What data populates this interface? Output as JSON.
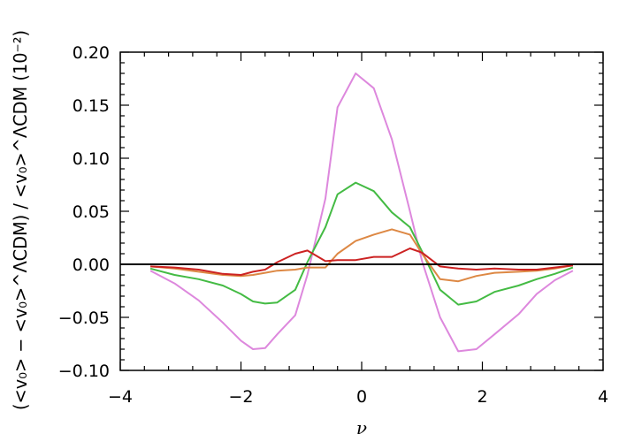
{
  "chart_data": {
    "type": "line",
    "title": "",
    "xlabel": "ν",
    "ylabel": "(<v₀> − <v₀>^ΛCDM) / <v₀>^ΛCDM (10⁻²)",
    "xlim": [
      -4,
      4
    ],
    "ylim": [
      -0.1,
      0.2
    ],
    "xticks": [
      -4,
      -2,
      0,
      2,
      4
    ],
    "yticks": [
      -0.1,
      -0.05,
      0.0,
      0.05,
      0.1,
      0.15,
      0.2
    ],
    "xtick_labels": [
      "−4",
      "−2",
      "0",
      "2",
      "4"
    ],
    "ytick_labels": [
      "−0.10",
      "−0.05",
      "0.00",
      "0.05",
      "0.10",
      "0.15",
      "0.20"
    ],
    "grid": false,
    "legend": "none",
    "x": [
      -3.5,
      -3.1,
      -2.7,
      -2.3,
      -2.0,
      -1.8,
      -1.6,
      -1.4,
      -1.1,
      -0.9,
      -0.6,
      -0.4,
      -0.1,
      0.2,
      0.5,
      0.8,
      1.0,
      1.3,
      1.6,
      1.9,
      2.2,
      2.6,
      2.9,
      3.2,
      3.5
    ],
    "series": [
      {
        "color": "#dd88dd",
        "values": [
          -0.006,
          -0.018,
          -0.034,
          -0.055,
          -0.072,
          -0.08,
          -0.079,
          -0.066,
          -0.048,
          -0.01,
          0.062,
          0.148,
          0.18,
          0.166,
          0.118,
          0.05,
          0.003,
          -0.05,
          -0.082,
          -0.08,
          -0.066,
          -0.047,
          -0.028,
          -0.015,
          -0.006
        ]
      },
      {
        "color": "#44bb44",
        "values": [
          -0.004,
          -0.01,
          -0.014,
          -0.02,
          -0.028,
          -0.035,
          -0.037,
          -0.036,
          -0.024,
          0.002,
          0.035,
          0.066,
          0.077,
          0.069,
          0.049,
          0.035,
          0.012,
          -0.024,
          -0.038,
          -0.035,
          -0.026,
          -0.02,
          -0.014,
          -0.009,
          -0.003
        ]
      },
      {
        "color": "#dd8844",
        "values": [
          -0.002,
          -0.004,
          -0.007,
          -0.01,
          -0.011,
          -0.01,
          -0.008,
          -0.006,
          -0.005,
          -0.003,
          -0.003,
          0.01,
          0.022,
          0.028,
          0.033,
          0.028,
          0.01,
          -0.014,
          -0.016,
          -0.011,
          -0.008,
          -0.007,
          -0.006,
          -0.004,
          -0.001
        ]
      },
      {
        "color": "#cc2222",
        "values": [
          -0.002,
          -0.003,
          -0.005,
          -0.009,
          -0.01,
          -0.007,
          -0.005,
          0.002,
          0.01,
          0.013,
          0.003,
          0.004,
          0.004,
          0.007,
          0.007,
          0.015,
          0.011,
          -0.002,
          -0.004,
          -0.005,
          -0.004,
          -0.005,
          -0.005,
          -0.003,
          -0.001
        ]
      }
    ]
  }
}
